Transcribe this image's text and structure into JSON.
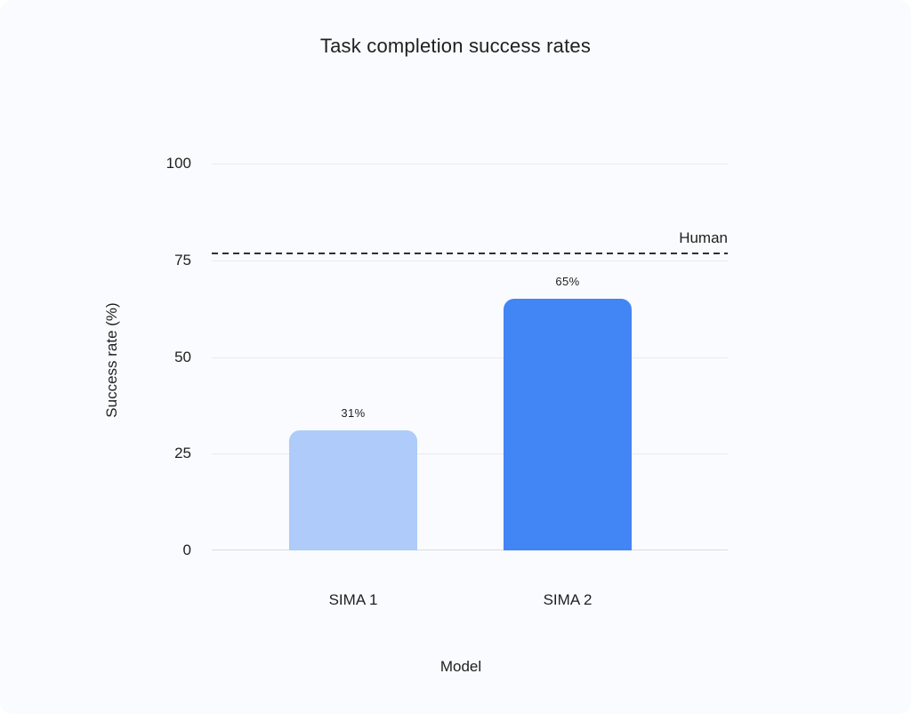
{
  "page": {
    "background": "#fafbfe"
  },
  "chart_data": {
    "type": "bar",
    "title": "Task completion success rates",
    "xlabel": "Model",
    "ylabel": "Success rate (%)",
    "categories": [
      "SIMA 1",
      "SIMA 2"
    ],
    "values": [
      31,
      65
    ],
    "value_labels": [
      "31%",
      "65%"
    ],
    "bar_colors": [
      "#aecbfa",
      "#4285f4"
    ],
    "ylim": [
      0,
      100
    ],
    "yticks": [
      0,
      25,
      50,
      75,
      100
    ],
    "grid": true,
    "legend": "none",
    "reference_line": {
      "label": "Human",
      "value": 77,
      "color": "#2e3133",
      "style": "dashed"
    }
  }
}
